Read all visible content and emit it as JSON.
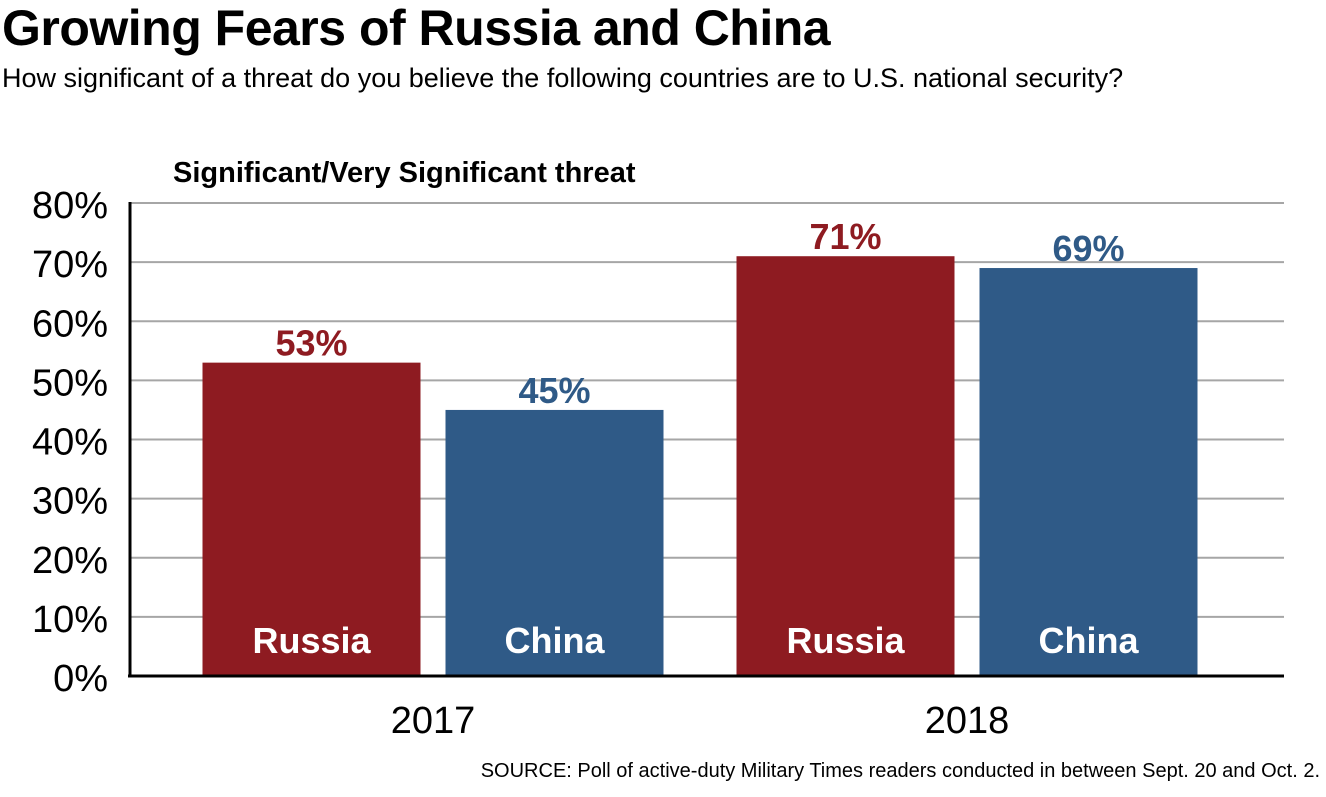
{
  "chart_data": {
    "type": "bar",
    "title": "Growing Fears of Russia and China",
    "subtitle": "How significant of a threat do you believe the following countries are to U.S. national security?",
    "ylabel": "Significant/Very Significant threat",
    "categories": [
      "2017",
      "2018"
    ],
    "series": [
      {
        "name": "Russia",
        "values": [
          53,
          71
        ],
        "color": "#8e1b21"
      },
      {
        "name": "China",
        "values": [
          45,
          69
        ],
        "color": "#2f5a87"
      }
    ],
    "data_labels": [
      [
        "53%",
        "71%"
      ],
      [
        "45%",
        "69%"
      ]
    ],
    "ylim": [
      0,
      80
    ],
    "yticks": [
      0,
      10,
      20,
      30,
      40,
      50,
      60,
      70,
      80
    ],
    "ytick_labels": [
      "0%",
      "10%",
      "20%",
      "30%",
      "40%",
      "50%",
      "60%",
      "70%",
      "80%"
    ],
    "grid": true,
    "legend": "labels inside bars",
    "source": "SOURCE: Poll of active-duty Military Times readers conducted in between Sept. 20 and Oct. 2."
  }
}
